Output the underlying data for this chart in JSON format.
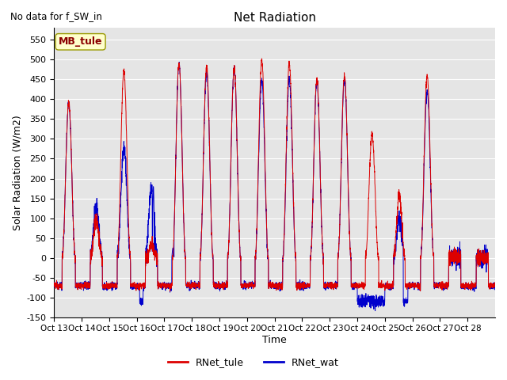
{
  "title": "Net Radiation",
  "subtitle": "No data for f_SW_in",
  "ylabel": "Solar Radiation (W/m2)",
  "xlabel": "Time",
  "ylim": [
    -150,
    580
  ],
  "yticks": [
    -150,
    -100,
    -50,
    0,
    50,
    100,
    150,
    200,
    250,
    300,
    350,
    400,
    450,
    500,
    550
  ],
  "xtick_labels": [
    "Oct 13",
    "Oct 14",
    "Oct 15",
    "Oct 16",
    "Oct 17",
    "Oct 18",
    "Oct 19",
    "Oct 20",
    "Oct 21",
    "Oct 22",
    "Oct 23",
    "Oct 24",
    "Oct 25",
    "Oct 26",
    "Oct 27",
    "Oct 28"
  ],
  "color_tule": "#dd0000",
  "color_wat": "#0000cc",
  "legend_labels": [
    "RNet_tule",
    "RNet_wat"
  ],
  "watermark_text": "MB_tule",
  "bg_color": "#e5e5e5",
  "n_points": 3840,
  "n_days": 16,
  "figsize": [
    6.4,
    4.8
  ],
  "dpi": 100
}
